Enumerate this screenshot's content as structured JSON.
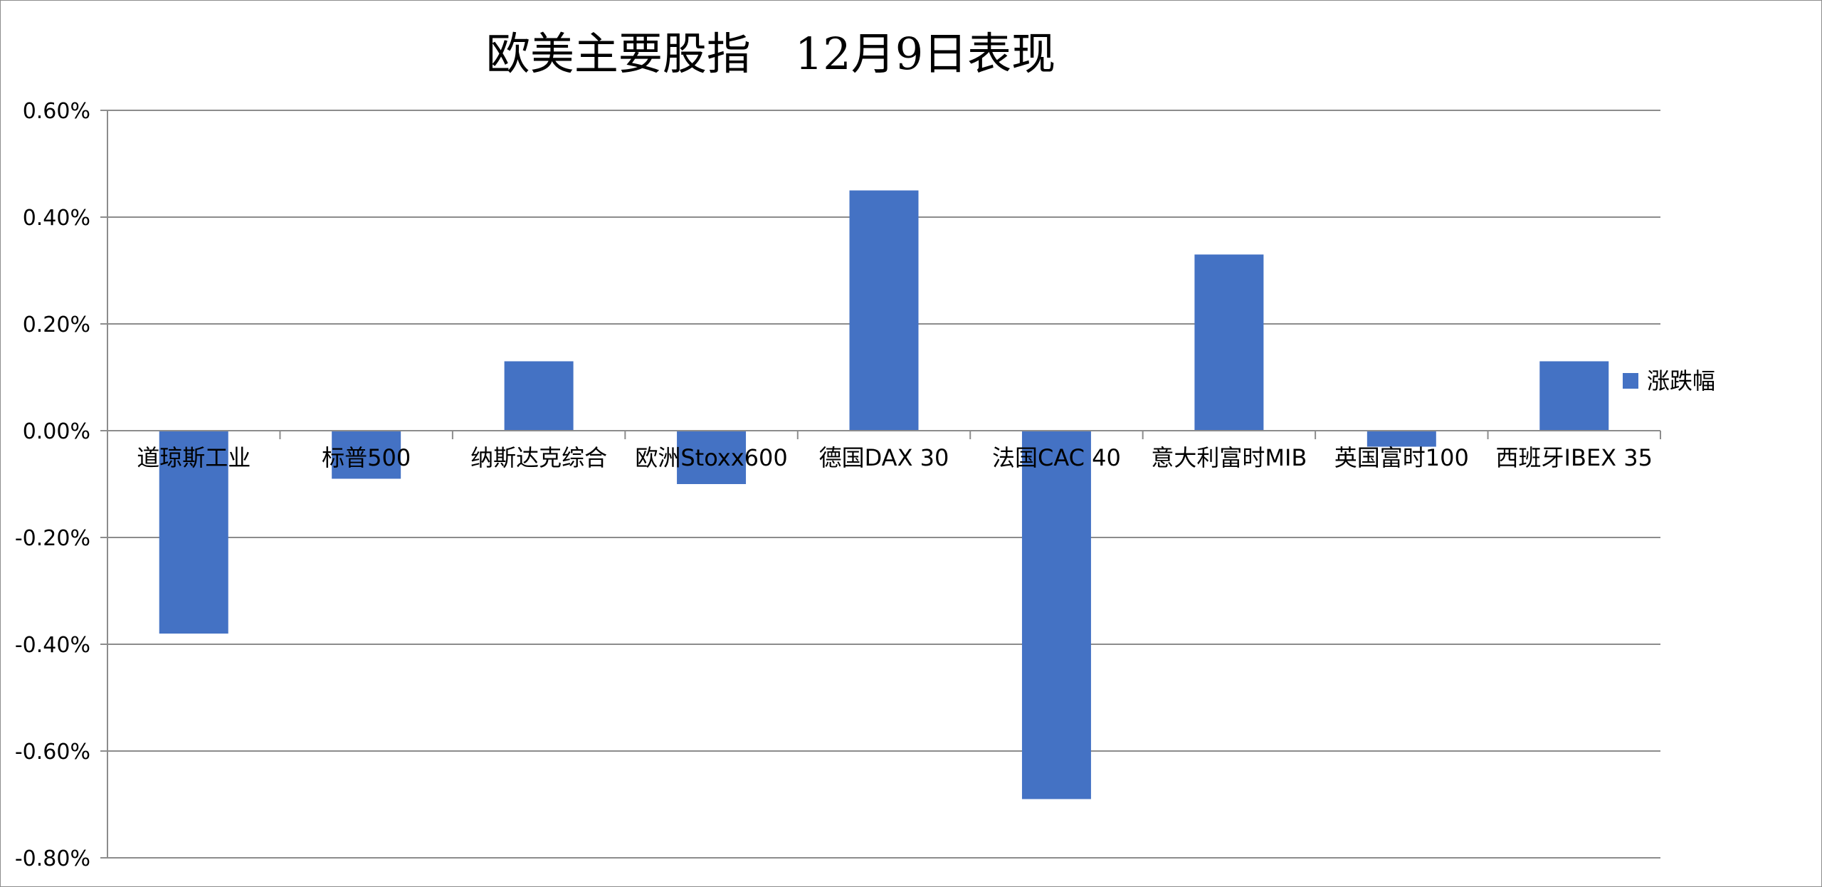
{
  "chart_data": {
    "type": "bar",
    "title": "欧美主要股指　12月9日表现",
    "xlabel": "",
    "ylabel": "",
    "categories": [
      "道琼斯工业",
      "标普500",
      "纳斯达克综合",
      "欧洲Stoxx600",
      "德国DAX 30",
      "法国CAC 40",
      "意大利富时MIB",
      "英国富时100",
      "西班牙IBEX 35"
    ],
    "series": [
      {
        "name": "涨跌幅",
        "values": [
          -0.38,
          -0.09,
          0.13,
          -0.1,
          0.45,
          -0.69,
          0.33,
          -0.03,
          0.13
        ],
        "color": "#4472C4"
      }
    ],
    "ylim": [
      -0.8,
      0.6
    ],
    "y_ticks": [
      0.6,
      0.4,
      0.2,
      0.0,
      -0.2,
      -0.4,
      -0.6,
      -0.8
    ],
    "y_tick_labels": [
      "0.60%",
      "0.40%",
      "0.20%",
      "0.00%",
      "-0.20%",
      "-0.40%",
      "-0.60%",
      "-0.80%"
    ],
    "grid": true,
    "legend_position": "right",
    "colors": {
      "bar": "#4472C4",
      "gridline": "#8c8c8c",
      "axis": "#8c8c8c"
    }
  }
}
